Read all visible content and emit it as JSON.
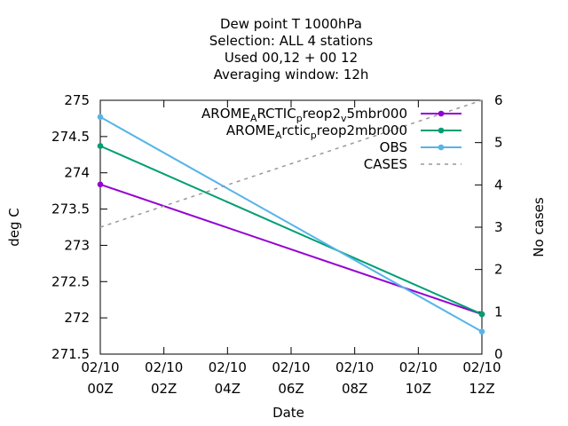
{
  "chart_data": {
    "type": "line",
    "title_lines": [
      "Dew point T 1000hPa",
      "Selection: ALL      4 stations",
      "Used  00,12  + 00 12",
      "Averaging window: 12h"
    ],
    "xlabel": "Date",
    "ylabel": "deg C",
    "y2label": "No cases",
    "x": [
      0,
      12
    ],
    "xlim": [
      0,
      12
    ],
    "x_ticks": [
      {
        "at": 0,
        "line1": "02/10",
        "line2": "00Z"
      },
      {
        "at": 2,
        "line1": "02/10",
        "line2": "02Z"
      },
      {
        "at": 4,
        "line1": "02/10",
        "line2": "04Z"
      },
      {
        "at": 6,
        "line1": "02/10",
        "line2": "06Z"
      },
      {
        "at": 8,
        "line1": "02/10",
        "line2": "08Z"
      },
      {
        "at": 10,
        "line1": "02/10",
        "line2": "10Z"
      },
      {
        "at": 12,
        "line1": "02/10",
        "line2": "12Z"
      }
    ],
    "ylim": [
      271.5,
      275
    ],
    "y_ticks": [
      "271.5",
      "272",
      "272.5",
      "273",
      "273.5",
      "274",
      "274.5",
      "275"
    ],
    "y2lim": [
      0,
      6
    ],
    "y2_ticks": [
      "0",
      "1",
      "2",
      "3",
      "4",
      "5",
      "6"
    ],
    "legend_position": "top-right",
    "series": [
      {
        "name": "AROME_ARCTIC_preop2_v5mbr000",
        "legend_parts": [
          "AROME",
          "A",
          "RCTIC",
          "p",
          "reop2",
          "v",
          "5mbr000"
        ],
        "legend_subs": [
          1,
          3,
          5
        ],
        "color": "#9400d3",
        "axis": "y1",
        "marker": true,
        "dash": false,
        "values": [
          273.84,
          272.05
        ]
      },
      {
        "name": "AROME_Arctic_preop2mbr000",
        "legend_parts": [
          "AROME",
          "A",
          "rctic",
          "p",
          "reop2mbr000"
        ],
        "legend_subs": [
          1,
          3
        ],
        "color": "#009e73",
        "axis": "y1",
        "marker": true,
        "dash": false,
        "values": [
          274.37,
          272.05
        ]
      },
      {
        "name": "OBS",
        "legend_parts": [
          "OBS"
        ],
        "legend_subs": [],
        "color": "#56b4e9",
        "axis": "y1",
        "marker": true,
        "dash": false,
        "values": [
          274.77,
          271.81
        ]
      },
      {
        "name": "CASES",
        "legend_parts": [
          "CASES"
        ],
        "legend_subs": [],
        "color": "#999999",
        "axis": "y2",
        "marker": false,
        "dash": true,
        "values": [
          3,
          6
        ]
      }
    ]
  }
}
